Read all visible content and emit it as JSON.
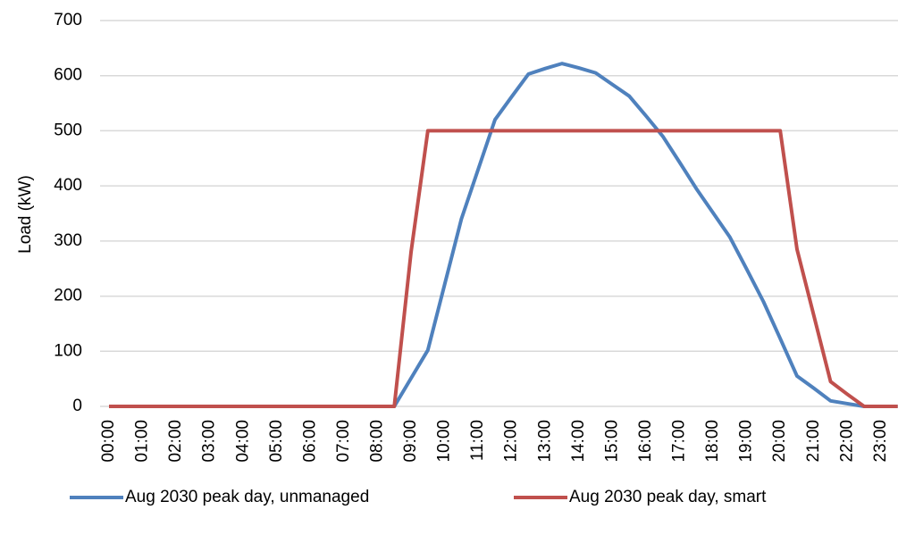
{
  "chart_data": {
    "type": "line",
    "y_label": "Load (kW)",
    "categories": [
      "00:00",
      null,
      "01:00",
      null,
      "02:00",
      null,
      "03:00",
      null,
      "04:00",
      null,
      "05:00",
      null,
      "06:00",
      null,
      "07:00",
      null,
      "08:00",
      null,
      "09:00",
      null,
      "10:00",
      null,
      "11:00",
      null,
      "12:00",
      null,
      "13:00",
      null,
      "14:00",
      null,
      "15:00",
      null,
      "16:00",
      null,
      "17:00",
      null,
      "18:00",
      null,
      "19:00",
      null,
      "20:00",
      null,
      "21:00",
      null,
      "22:00",
      null,
      "23:00",
      null
    ],
    "series": [
      {
        "name": "Aug 2030 peak day, unmanaged",
        "color": "#4f81bd",
        "values": [
          0,
          0,
          0,
          0,
          0,
          0,
          0,
          0,
          0,
          0,
          0,
          0,
          0,
          0,
          0,
          0,
          0,
          0,
          51,
          102,
          221,
          340,
          430,
          520,
          562,
          603,
          613,
          622,
          614,
          605,
          584,
          563,
          527,
          490,
          443,
          395,
          351,
          307,
          249,
          190,
          123,
          55,
          33,
          10,
          5,
          0,
          0,
          0
        ]
      },
      {
        "name": "Aug 2030 peak day, smart",
        "color": "#c0504d",
        "values": [
          0,
          0,
          0,
          0,
          0,
          0,
          0,
          0,
          0,
          0,
          0,
          0,
          0,
          0,
          0,
          0,
          0,
          0,
          280,
          500,
          500,
          500,
          500,
          500,
          500,
          500,
          500,
          500,
          500,
          500,
          500,
          500,
          500,
          500,
          500,
          500,
          500,
          500,
          500,
          500,
          500,
          285,
          165,
          45,
          22,
          0,
          0,
          0
        ]
      }
    ],
    "ylim": [
      0,
      700
    ],
    "yticks": [
      0,
      100,
      200,
      300,
      400,
      500,
      600,
      700
    ],
    "grid": true,
    "legend": "bottom"
  }
}
